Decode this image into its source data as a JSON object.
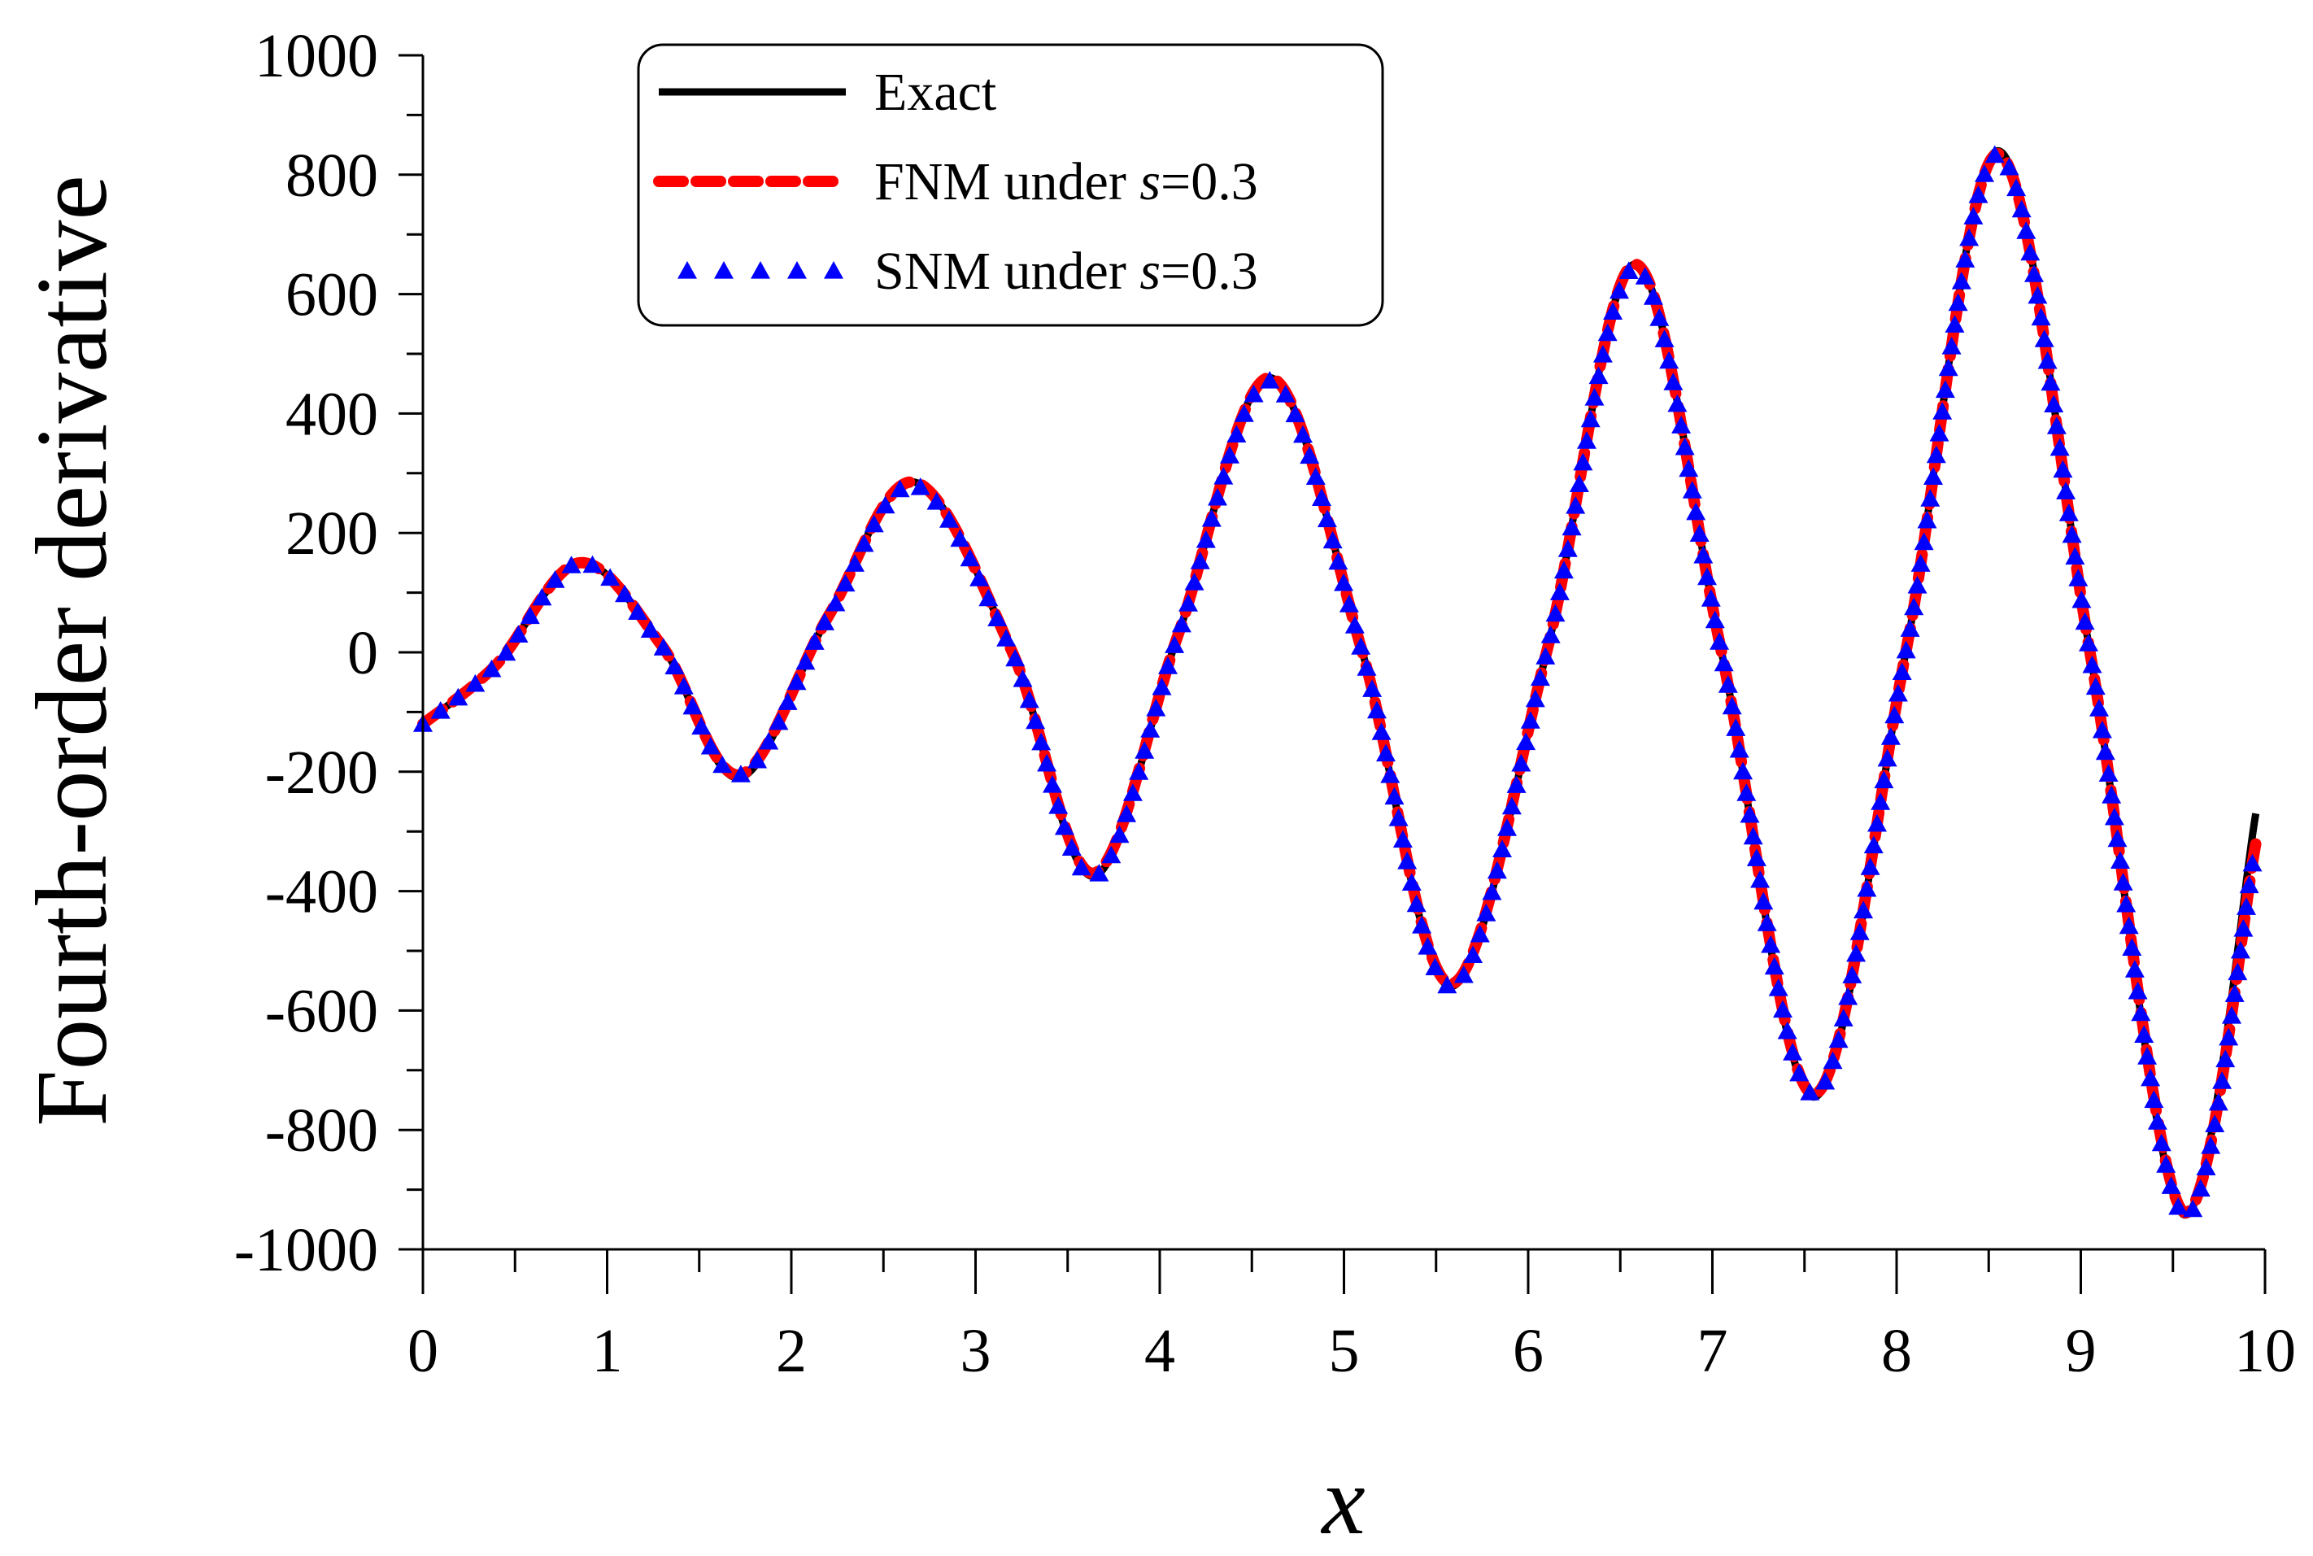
{
  "chart_data": {
    "type": "line",
    "title": "",
    "xlabel": "x",
    "ylabel": "Fourth-order derivative",
    "xlim": [
      0,
      10
    ],
    "ylim": [
      -1000,
      1000
    ],
    "x_ticks": [
      "0",
      "1",
      "2",
      "3",
      "4",
      "5",
      "6",
      "7",
      "8",
      "9",
      "10"
    ],
    "y_ticks": [
      "-1000",
      "-800",
      "-600",
      "-400",
      "-200",
      "0",
      "200",
      "400",
      "600",
      "800",
      "1000"
    ],
    "grid": false,
    "legend_position": "top-left",
    "legend": {
      "entries": [
        {
          "key": "exact",
          "pre": "Exact",
          "var": "",
          "post": ""
        },
        {
          "key": "fnm",
          "pre": "FNM under ",
          "var": "s",
          "post": "=0.3"
        },
        {
          "key": "snm",
          "pre": "SNM under ",
          "var": "s",
          "post": "=0.3"
        }
      ]
    },
    "series": [
      {
        "key": "exact",
        "style": "solid",
        "color": "#000000",
        "x": [
          0,
          0.4,
          0.85,
          1.3,
          1.72,
          2.2,
          2.67,
          3.2,
          3.64,
          4.1,
          4.6,
          5.1,
          5.58,
          6.1,
          6.58,
          7.05,
          7.55,
          8.05,
          8.55,
          9.05,
          9.55,
          9.95
        ],
        "y": [
          -120,
          -20,
          150,
          10,
          -210,
          60,
          285,
          0,
          -375,
          30,
          460,
          0,
          -560,
          0,
          650,
          0,
          -745,
          0,
          840,
          0,
          -940,
          -270
        ]
      },
      {
        "key": "fnm",
        "style": "dashed",
        "color": "#ff0000",
        "x": [
          0,
          0.4,
          0.85,
          1.3,
          1.72,
          2.2,
          2.67,
          3.2,
          3.64,
          4.1,
          4.6,
          5.1,
          5.58,
          6.1,
          6.58,
          7.05,
          7.55,
          8.05,
          8.55,
          9.05,
          9.55,
          9.95
        ],
        "y": [
          -120,
          -20,
          150,
          10,
          -205,
          60,
          285,
          0,
          -370,
          30,
          460,
          0,
          -555,
          0,
          650,
          0,
          -740,
          0,
          835,
          0,
          -935,
          -320
        ]
      },
      {
        "key": "snm",
        "style": "triangle-markers",
        "color": "#0000ff",
        "x": [
          0,
          0.4,
          0.85,
          1.3,
          1.72,
          2.2,
          2.67,
          3.2,
          3.64,
          4.1,
          4.6,
          5.1,
          5.58,
          6.1,
          6.58,
          7.05,
          7.55,
          8.05,
          8.55,
          9.05,
          9.55,
          9.95
        ],
        "y": [
          -120,
          -20,
          150,
          10,
          -205,
          60,
          280,
          0,
          -375,
          30,
          455,
          0,
          -560,
          0,
          645,
          0,
          -740,
          0,
          835,
          0,
          -940,
          -320
        ]
      }
    ]
  }
}
